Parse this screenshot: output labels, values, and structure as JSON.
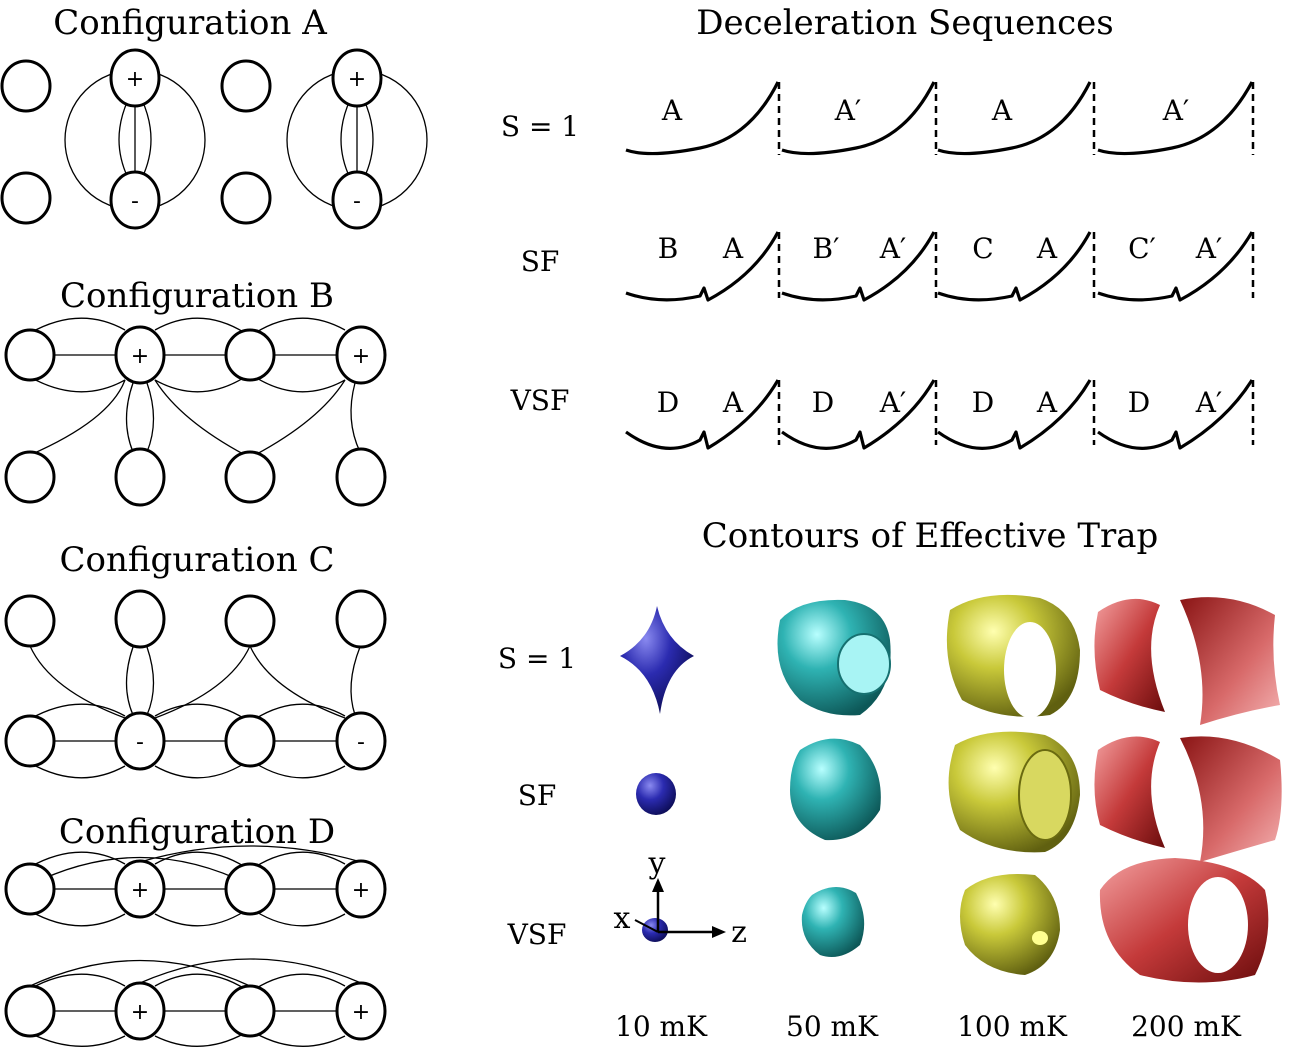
{
  "left_panel": {
    "configs": [
      {
        "title": "Configuration A",
        "signs": [
          "+",
          "-",
          "+",
          "-"
        ]
      },
      {
        "title": "Configuration B",
        "signs": [
          "+",
          "+"
        ]
      },
      {
        "title": "Configuration C",
        "signs": [
          "-",
          "-"
        ]
      },
      {
        "title": "Configuration D",
        "signs": [
          "+",
          "+",
          "+",
          "+"
        ]
      }
    ]
  },
  "deceleration": {
    "title": "Deceleration Sequences",
    "rows": [
      {
        "label": "S = 1",
        "segments": [
          [
            "A"
          ],
          [
            "A′"
          ],
          [
            "A"
          ],
          [
            "A′"
          ]
        ]
      },
      {
        "label": "SF",
        "segments": [
          [
            "B",
            "A"
          ],
          [
            "B′",
            "A′"
          ],
          [
            "C",
            "A"
          ],
          [
            "C′",
            "A′"
          ]
        ]
      },
      {
        "label": "VSF",
        "segments": [
          [
            "D",
            "A"
          ],
          [
            "D",
            "A′"
          ],
          [
            "D",
            "A"
          ],
          [
            "D",
            "A′"
          ]
        ]
      }
    ]
  },
  "contours": {
    "title": "Contours of Effective Trap",
    "row_labels": [
      "S = 1",
      "SF",
      "VSF"
    ],
    "temperatures": [
      "10 mK",
      "50 mK",
      "100 mK",
      "200 mK"
    ],
    "colors": {
      "10 mK": "#1c1c8c",
      "50 mK": "#2a9a9a",
      "100 mK": "#b4b42a",
      "200 mK": "#b42a2a"
    },
    "axes": {
      "x": "x",
      "y": "y",
      "z": "z"
    }
  }
}
